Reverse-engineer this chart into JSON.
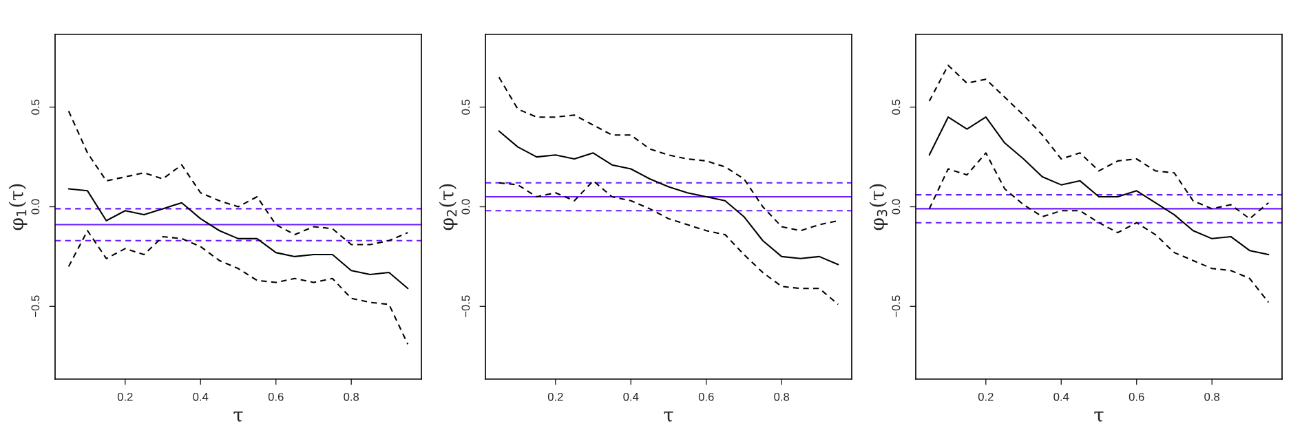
{
  "chart_data": [
    {
      "type": "line",
      "xlabel": "τ",
      "ylabel": "φ$_{1}$(τ)",
      "xlim": [
        0.014,
        0.986
      ],
      "ylim": [
        -0.865,
        0.865
      ],
      "xticks": [
        0.2,
        0.4,
        0.6,
        0.8
      ],
      "yticks": [
        {
          "value": -0.5,
          "label": "−0.5"
        },
        {
          "value": 0,
          "label": "0.0"
        },
        {
          "value": 0.5,
          "label": "0.5"
        }
      ],
      "grid": false,
      "legend": false,
      "x": [
        0.05,
        0.1,
        0.15,
        0.2,
        0.25,
        0.3,
        0.35,
        0.4,
        0.45,
        0.5,
        0.55,
        0.6,
        0.65,
        0.7,
        0.75,
        0.8,
        0.85,
        0.9,
        0.95
      ],
      "series": [
        {
          "color": "#000000",
          "line_style": "solid",
          "values": [
            0.09,
            0.08,
            -0.07,
            -0.02,
            -0.04,
            -0.01,
            0.02,
            -0.06,
            -0.12,
            -0.16,
            -0.16,
            -0.23,
            -0.25,
            -0.24,
            -0.24,
            -0.32,
            -0.34,
            -0.33,
            -0.41
          ]
        },
        {
          "color": "#000000",
          "line_style": "dashed",
          "values": [
            0.48,
            0.27,
            0.13,
            0.15,
            0.17,
            0.14,
            0.21,
            0.07,
            0.03,
            0.0,
            0.05,
            -0.09,
            -0.14,
            -0.1,
            -0.11,
            -0.19,
            -0.19,
            -0.17,
            -0.13
          ]
        },
        {
          "color": "#000000",
          "line_style": "dashed",
          "values": [
            -0.3,
            -0.12,
            -0.26,
            -0.21,
            -0.24,
            -0.15,
            -0.16,
            -0.2,
            -0.27,
            -0.31,
            -0.37,
            -0.38,
            -0.36,
            -0.38,
            -0.36,
            -0.46,
            -0.48,
            -0.49,
            -0.69
          ]
        }
      ],
      "ref_lines": [
        {
          "axis": "y",
          "value": -0.09,
          "color": "#6a1bff",
          "line_style": "solid"
        },
        {
          "axis": "y",
          "value": -0.01,
          "color": "#6a1bff",
          "line_style": "dashed"
        },
        {
          "axis": "y",
          "value": -0.17,
          "color": "#6a1bff",
          "line_style": "dashed"
        }
      ]
    },
    {
      "type": "line",
      "xlabel": "τ",
      "ylabel": "φ$_{2}$(τ)",
      "xlim": [
        0.014,
        0.986
      ],
      "ylim": [
        -0.865,
        0.865
      ],
      "xticks": [
        0.2,
        0.4,
        0.6,
        0.8
      ],
      "yticks": [
        {
          "value": -0.5,
          "label": "−0.5"
        },
        {
          "value": 0,
          "label": "0.0"
        },
        {
          "value": 0.5,
          "label": "0.5"
        }
      ],
      "grid": false,
      "legend": false,
      "x": [
        0.05,
        0.1,
        0.15,
        0.2,
        0.25,
        0.3,
        0.35,
        0.4,
        0.45,
        0.5,
        0.55,
        0.6,
        0.65,
        0.7,
        0.75,
        0.8,
        0.85,
        0.9,
        0.95
      ],
      "series": [
        {
          "color": "#000000",
          "line_style": "solid",
          "values": [
            0.38,
            0.3,
            0.25,
            0.26,
            0.24,
            0.27,
            0.21,
            0.19,
            0.14,
            0.1,
            0.07,
            0.05,
            0.03,
            -0.05,
            -0.17,
            -0.25,
            -0.26,
            -0.25,
            -0.29
          ]
        },
        {
          "color": "#000000",
          "line_style": "dashed",
          "values": [
            0.65,
            0.49,
            0.45,
            0.45,
            0.46,
            0.41,
            0.36,
            0.36,
            0.29,
            0.26,
            0.24,
            0.23,
            0.2,
            0.14,
            0.0,
            -0.1,
            -0.12,
            -0.09,
            -0.07
          ]
        },
        {
          "color": "#000000",
          "line_style": "dashed",
          "values": [
            0.12,
            0.11,
            0.05,
            0.07,
            0.03,
            0.13,
            0.05,
            0.03,
            -0.01,
            -0.06,
            -0.09,
            -0.12,
            -0.14,
            -0.24,
            -0.33,
            -0.4,
            -0.41,
            -0.41,
            -0.49
          ]
        }
      ],
      "ref_lines": [
        {
          "axis": "y",
          "value": 0.05,
          "color": "#6a1bff",
          "line_style": "solid"
        },
        {
          "axis": "y",
          "value": 0.12,
          "color": "#6a1bff",
          "line_style": "dashed"
        },
        {
          "axis": "y",
          "value": -0.02,
          "color": "#6a1bff",
          "line_style": "dashed"
        }
      ]
    },
    {
      "type": "line",
      "xlabel": "τ",
      "ylabel": "φ$_{3}$(τ)",
      "xlim": [
        0.014,
        0.986
      ],
      "ylim": [
        -0.865,
        0.865
      ],
      "xticks": [
        0.2,
        0.4,
        0.6,
        0.8
      ],
      "yticks": [
        {
          "value": -0.5,
          "label": "−0.5"
        },
        {
          "value": 0,
          "label": "0.0"
        },
        {
          "value": 0.5,
          "label": "0.5"
        }
      ],
      "grid": false,
      "legend": false,
      "x": [
        0.05,
        0.1,
        0.15,
        0.2,
        0.25,
        0.3,
        0.35,
        0.4,
        0.45,
        0.5,
        0.55,
        0.6,
        0.65,
        0.7,
        0.75,
        0.8,
        0.85,
        0.9,
        0.95
      ],
      "series": [
        {
          "color": "#000000",
          "line_style": "solid",
          "values": [
            0.26,
            0.45,
            0.39,
            0.45,
            0.32,
            0.24,
            0.15,
            0.11,
            0.13,
            0.05,
            0.05,
            0.08,
            0.02,
            -0.04,
            -0.12,
            -0.16,
            -0.15,
            -0.22,
            -0.24
          ]
        },
        {
          "color": "#000000",
          "line_style": "dashed",
          "values": [
            0.53,
            0.71,
            0.62,
            0.64,
            0.55,
            0.46,
            0.36,
            0.24,
            0.27,
            0.18,
            0.23,
            0.24,
            0.18,
            0.17,
            0.03,
            -0.01,
            0.01,
            -0.06,
            0.02
          ]
        },
        {
          "color": "#000000",
          "line_style": "dashed",
          "values": [
            -0.01,
            0.19,
            0.16,
            0.27,
            0.09,
            0.01,
            -0.05,
            -0.02,
            -0.02,
            -0.08,
            -0.13,
            -0.08,
            -0.14,
            -0.23,
            -0.27,
            -0.31,
            -0.32,
            -0.36,
            -0.48
          ]
        }
      ],
      "ref_lines": [
        {
          "axis": "y",
          "value": -0.01,
          "color": "#6a1bff",
          "line_style": "solid"
        },
        {
          "axis": "y",
          "value": 0.06,
          "color": "#6a1bff",
          "line_style": "dashed"
        },
        {
          "axis": "y",
          "value": -0.08,
          "color": "#6a1bff",
          "line_style": "dashed"
        }
      ]
    }
  ]
}
